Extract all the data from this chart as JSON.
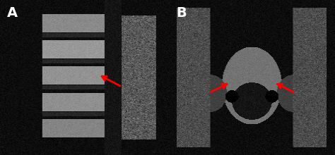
{
  "fig_width": 4.74,
  "fig_height": 2.2,
  "dpi": 100,
  "background_color": "#000000",
  "panel_A": {
    "label": "A",
    "label_color": "#ffffff",
    "label_fontsize": 14,
    "label_fontweight": "bold"
  },
  "panel_B": {
    "label": "B",
    "label_color": "#ffffff",
    "label_fontsize": 14,
    "label_fontweight": "bold"
  }
}
